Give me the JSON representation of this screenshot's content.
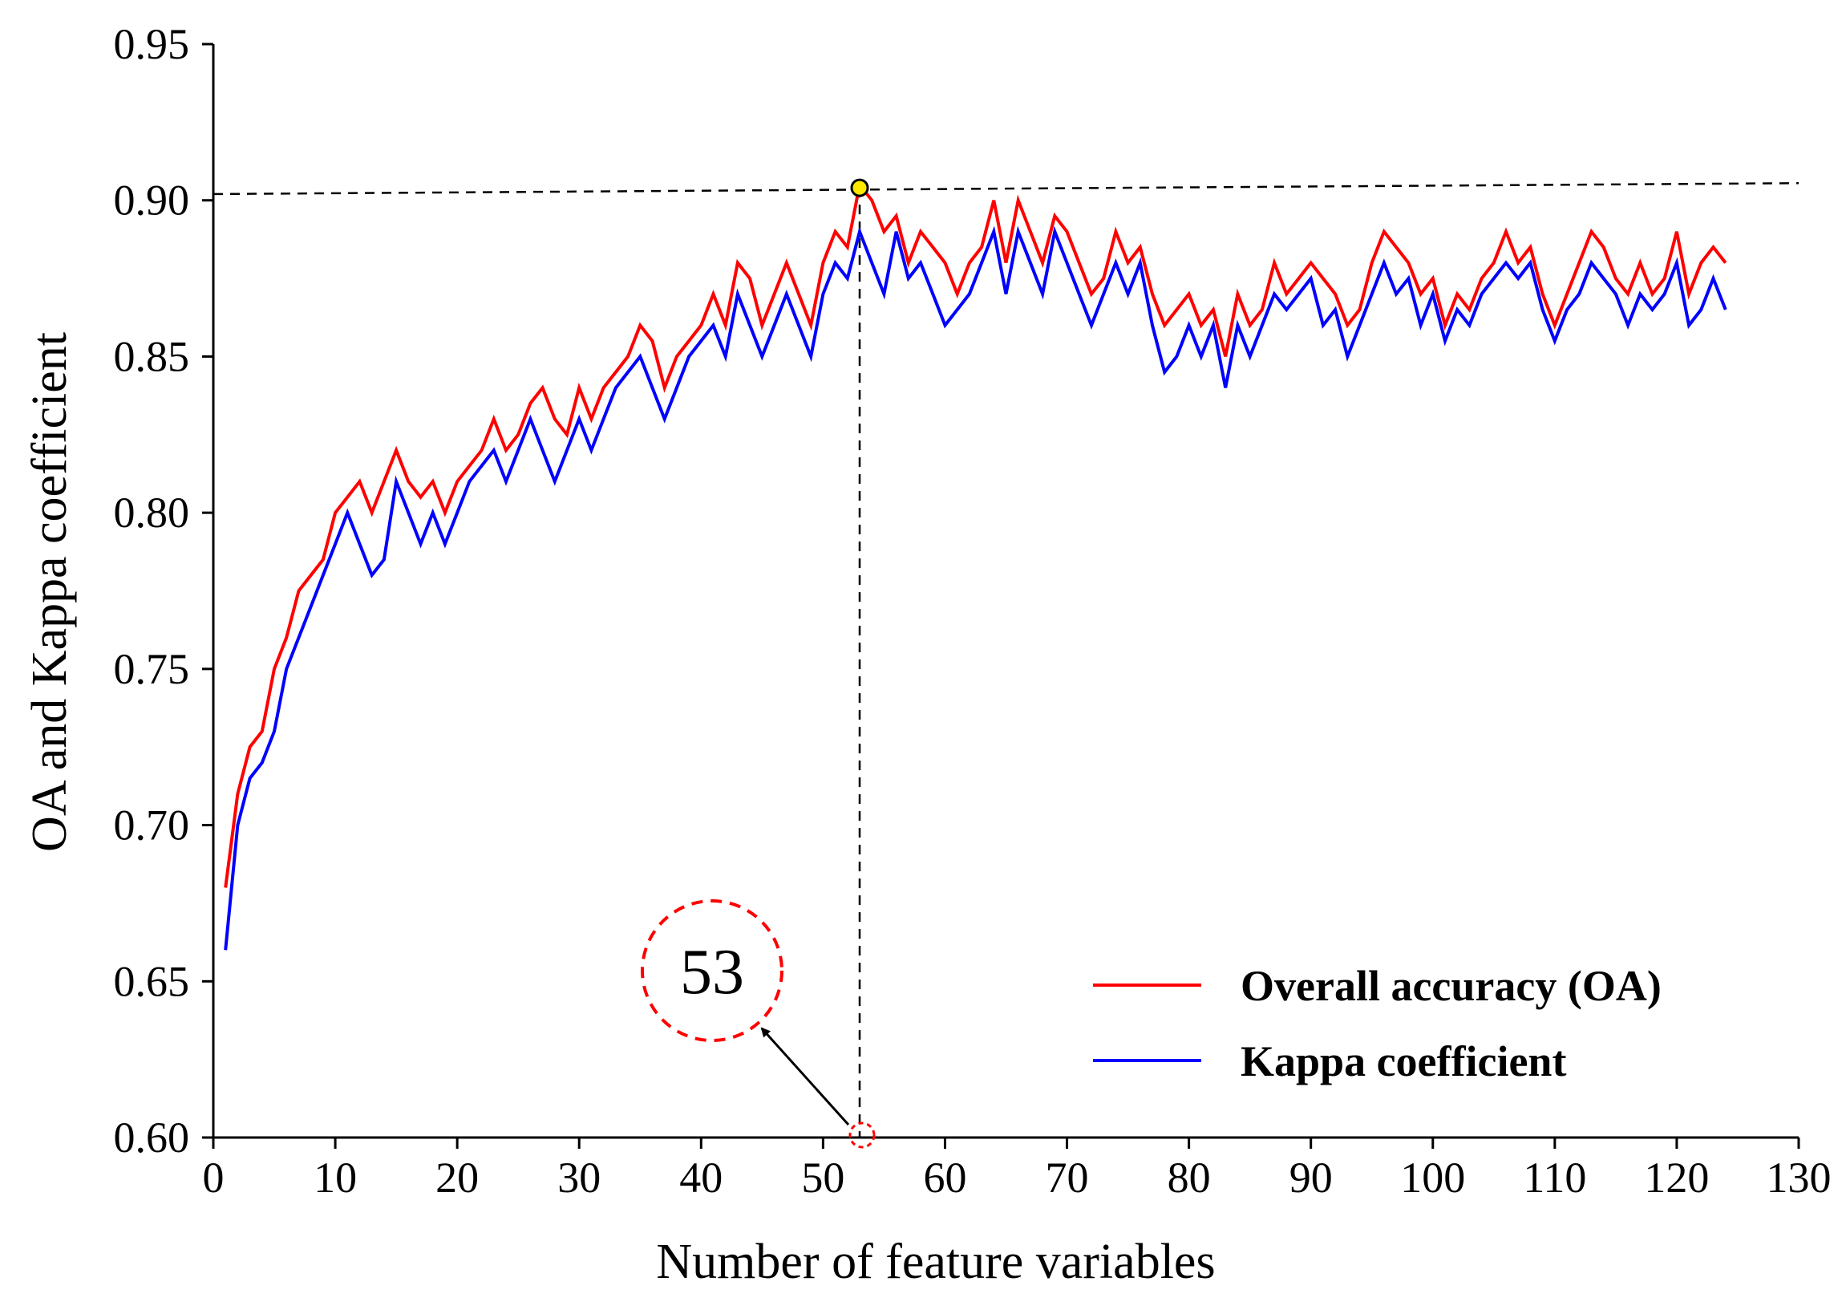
{
  "chart_data": {
    "type": "line",
    "title": "",
    "xlabel": "Number of feature variables",
    "ylabel": "OA and Kappa coefficient",
    "xlim": [
      0,
      130
    ],
    "ylim": [
      0.6,
      0.95
    ],
    "xticks": [
      0,
      10,
      20,
      30,
      40,
      50,
      60,
      70,
      80,
      90,
      100,
      110,
      120,
      130
    ],
    "yticks": [
      "0.60",
      "0.65",
      "0.70",
      "0.75",
      "0.80",
      "0.85",
      "0.90",
      "0.95"
    ],
    "grid": false,
    "legend_position": "bottom-right",
    "series": [
      {
        "name": "Overall accuracy (OA)",
        "color": "#ff0000",
        "x": [
          1,
          2,
          3,
          4,
          5,
          6,
          7,
          8,
          9,
          10,
          11,
          12,
          13,
          14,
          15,
          16,
          17,
          18,
          19,
          20,
          21,
          22,
          23,
          24,
          25,
          26,
          27,
          28,
          29,
          30,
          31,
          32,
          33,
          34,
          35,
          36,
          37,
          38,
          39,
          40,
          41,
          42,
          43,
          44,
          45,
          46,
          47,
          48,
          49,
          50,
          51,
          52,
          53,
          54,
          55,
          56,
          57,
          58,
          59,
          60,
          61,
          62,
          63,
          64,
          65,
          66,
          67,
          68,
          69,
          70,
          71,
          72,
          73,
          74,
          75,
          76,
          77,
          78,
          79,
          80,
          81,
          82,
          83,
          84,
          85,
          86,
          87,
          88,
          89,
          90,
          91,
          92,
          93,
          94,
          95,
          96,
          97,
          98,
          99,
          100,
          101,
          102,
          103,
          104,
          105,
          106,
          107,
          108,
          109,
          110,
          111,
          112,
          113,
          114,
          115,
          116,
          117,
          118,
          119,
          120,
          121,
          122,
          123,
          124
        ],
        "y": [
          0.68,
          0.71,
          0.725,
          0.73,
          0.75,
          0.76,
          0.775,
          0.78,
          0.785,
          0.8,
          0.805,
          0.81,
          0.8,
          0.81,
          0.82,
          0.81,
          0.805,
          0.81,
          0.8,
          0.81,
          0.815,
          0.82,
          0.83,
          0.82,
          0.825,
          0.835,
          0.84,
          0.83,
          0.825,
          0.84,
          0.83,
          0.84,
          0.845,
          0.85,
          0.86,
          0.855,
          0.84,
          0.85,
          0.855,
          0.86,
          0.87,
          0.86,
          0.88,
          0.875,
          0.86,
          0.87,
          0.88,
          0.87,
          0.86,
          0.88,
          0.89,
          0.885,
          0.905,
          0.9,
          0.89,
          0.895,
          0.88,
          0.89,
          0.885,
          0.88,
          0.87,
          0.88,
          0.885,
          0.9,
          0.88,
          0.9,
          0.89,
          0.88,
          0.895,
          0.89,
          0.88,
          0.87,
          0.875,
          0.89,
          0.88,
          0.885,
          0.87,
          0.86,
          0.865,
          0.87,
          0.86,
          0.865,
          0.85,
          0.87,
          0.86,
          0.865,
          0.88,
          0.87,
          0.875,
          0.88,
          0.875,
          0.87,
          0.86,
          0.865,
          0.88,
          0.89,
          0.885,
          0.88,
          0.87,
          0.875,
          0.86,
          0.87,
          0.865,
          0.875,
          0.88,
          0.89,
          0.88,
          0.885,
          0.87,
          0.86,
          0.87,
          0.88,
          0.89,
          0.885,
          0.875,
          0.87,
          0.88,
          0.87,
          0.875,
          0.89,
          0.87,
          0.88,
          0.885,
          0.88
        ]
      },
      {
        "name": "Kappa coefficient",
        "color": "#0000ff",
        "x": [
          1,
          2,
          3,
          4,
          5,
          6,
          7,
          8,
          9,
          10,
          11,
          12,
          13,
          14,
          15,
          16,
          17,
          18,
          19,
          20,
          21,
          22,
          23,
          24,
          25,
          26,
          27,
          28,
          29,
          30,
          31,
          32,
          33,
          34,
          35,
          36,
          37,
          38,
          39,
          40,
          41,
          42,
          43,
          44,
          45,
          46,
          47,
          48,
          49,
          50,
          51,
          52,
          53,
          54,
          55,
          56,
          57,
          58,
          59,
          60,
          61,
          62,
          63,
          64,
          65,
          66,
          67,
          68,
          69,
          70,
          71,
          72,
          73,
          74,
          75,
          76,
          77,
          78,
          79,
          80,
          81,
          82,
          83,
          84,
          85,
          86,
          87,
          88,
          89,
          90,
          91,
          92,
          93,
          94,
          95,
          96,
          97,
          98,
          99,
          100,
          101,
          102,
          103,
          104,
          105,
          106,
          107,
          108,
          109,
          110,
          111,
          112,
          113,
          114,
          115,
          116,
          117,
          118,
          119,
          120,
          121,
          122,
          123,
          124
        ],
        "y": [
          0.66,
          0.7,
          0.715,
          0.72,
          0.73,
          0.75,
          0.76,
          0.77,
          0.78,
          0.79,
          0.8,
          0.79,
          0.78,
          0.785,
          0.81,
          0.8,
          0.79,
          0.8,
          0.79,
          0.8,
          0.81,
          0.815,
          0.82,
          0.81,
          0.82,
          0.83,
          0.82,
          0.81,
          0.82,
          0.83,
          0.82,
          0.83,
          0.84,
          0.845,
          0.85,
          0.84,
          0.83,
          0.84,
          0.85,
          0.855,
          0.86,
          0.85,
          0.87,
          0.86,
          0.85,
          0.86,
          0.87,
          0.86,
          0.85,
          0.87,
          0.88,
          0.875,
          0.89,
          0.88,
          0.87,
          0.89,
          0.875,
          0.88,
          0.87,
          0.86,
          0.865,
          0.87,
          0.88,
          0.89,
          0.87,
          0.89,
          0.88,
          0.87,
          0.89,
          0.88,
          0.87,
          0.86,
          0.87,
          0.88,
          0.87,
          0.88,
          0.86,
          0.845,
          0.85,
          0.86,
          0.85,
          0.86,
          0.84,
          0.86,
          0.85,
          0.86,
          0.87,
          0.865,
          0.87,
          0.875,
          0.86,
          0.865,
          0.85,
          0.86,
          0.87,
          0.88,
          0.87,
          0.875,
          0.86,
          0.87,
          0.855,
          0.865,
          0.86,
          0.87,
          0.875,
          0.88,
          0.875,
          0.88,
          0.865,
          0.855,
          0.865,
          0.87,
          0.88,
          0.875,
          0.87,
          0.86,
          0.87,
          0.865,
          0.87,
          0.88,
          0.86,
          0.865,
          0.875,
          0.865
        ]
      }
    ],
    "optimum": {
      "x": 53,
      "y": 0.904,
      "label": "53"
    }
  }
}
